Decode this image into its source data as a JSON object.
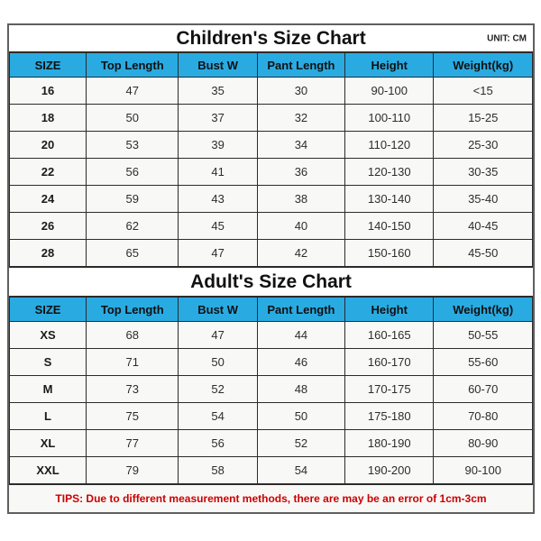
{
  "colors": {
    "header_bg": "#29abe2",
    "grid": "#2b2b2b",
    "outer_border": "#5f5f5f",
    "cell_bg": "#f8f8f6",
    "title_bg": "#ffffff",
    "tips_color": "#cc0000",
    "page_bg": "#ffffff"
  },
  "chart_data": [
    {
      "type": "table",
      "title": "Children's Size Chart",
      "unit_label": "UNIT: CM",
      "columns": [
        "SIZE",
        "Top Length",
        "Bust W",
        "Pant Length",
        "Height",
        "Weight(kg)"
      ],
      "rows": [
        [
          "16",
          "47",
          "35",
          "30",
          "90-100",
          "<15"
        ],
        [
          "18",
          "50",
          "37",
          "32",
          "100-110",
          "15-25"
        ],
        [
          "20",
          "53",
          "39",
          "34",
          "110-120",
          "25-30"
        ],
        [
          "22",
          "56",
          "41",
          "36",
          "120-130",
          "30-35"
        ],
        [
          "24",
          "59",
          "43",
          "38",
          "130-140",
          "35-40"
        ],
        [
          "26",
          "62",
          "45",
          "40",
          "140-150",
          "40-45"
        ],
        [
          "28",
          "65",
          "47",
          "42",
          "150-160",
          "45-50"
        ]
      ]
    },
    {
      "type": "table",
      "title": "Adult's Size Chart",
      "columns": [
        "SIZE",
        "Top Length",
        "Bust W",
        "Pant Length",
        "Height",
        "Weight(kg)"
      ],
      "rows": [
        [
          "XS",
          "68",
          "47",
          "44",
          "160-165",
          "50-55"
        ],
        [
          "S",
          "71",
          "50",
          "46",
          "160-170",
          "55-60"
        ],
        [
          "M",
          "73",
          "52",
          "48",
          "170-175",
          "60-70"
        ],
        [
          "L",
          "75",
          "54",
          "50",
          "175-180",
          "70-80"
        ],
        [
          "XL",
          "77",
          "56",
          "52",
          "180-190",
          "80-90"
        ],
        [
          "XXL",
          "79",
          "58",
          "54",
          "190-200",
          "90-100"
        ]
      ]
    }
  ],
  "tips": "TIPS: Due to different measurement methods, there are may be an error of 1cm-3cm"
}
